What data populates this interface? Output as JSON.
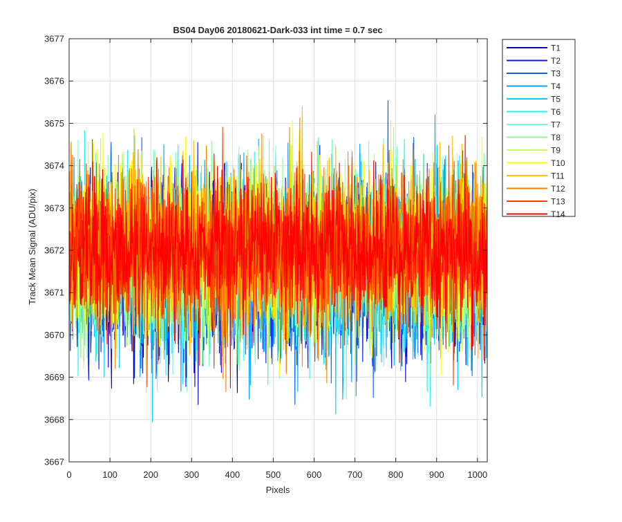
{
  "chart_data": {
    "type": "line",
    "title": "BS04 Day06 20180621-Dark-033 int time = 0.7 sec",
    "xlabel": "Pixels",
    "ylabel": "Track Mean Signal (ADU/pix)",
    "xlim": [
      0,
      1024
    ],
    "ylim": [
      3667,
      3677
    ],
    "x_ticks": [
      "0",
      "100",
      "200",
      "300",
      "400",
      "500",
      "600",
      "700",
      "800",
      "900",
      "1000"
    ],
    "y_ticks": [
      "3667",
      "3668",
      "3669",
      "3670",
      "3671",
      "3672",
      "3673",
      "3674",
      "3675",
      "3676",
      "3677"
    ],
    "grid": true,
    "legend_position": "outside-top-right",
    "n_points": 1024,
    "series": [
      {
        "name": "T1",
        "color": "#0000bf",
        "mean": 3671.5,
        "std": 1.0
      },
      {
        "name": "T2",
        "color": "#0017ff",
        "mean": 3671.5,
        "std": 1.0
      },
      {
        "name": "T3",
        "color": "#0060ff",
        "mean": 3671.6,
        "std": 1.0
      },
      {
        "name": "T4",
        "color": "#00a4ff",
        "mean": 3671.6,
        "std": 1.0
      },
      {
        "name": "T5",
        "color": "#00ccff",
        "mean": 3671.7,
        "std": 1.0
      },
      {
        "name": "T6",
        "color": "#1cf4ff",
        "mean": 3671.8,
        "std": 1.0
      },
      {
        "name": "T7",
        "color": "#6fffd1",
        "mean": 3671.8,
        "std": 1.0
      },
      {
        "name": "T8",
        "color": "#8fff8f",
        "mean": 3671.9,
        "std": 1.0
      },
      {
        "name": "T9",
        "color": "#c8ff5a",
        "mean": 3671.9,
        "std": 1.0
      },
      {
        "name": "T10",
        "color": "#ffff00",
        "mean": 3672.0,
        "std": 1.0
      },
      {
        "name": "T11",
        "color": "#ffbf00",
        "mean": 3672.0,
        "std": 0.95
      },
      {
        "name": "T12",
        "color": "#ff8000",
        "mean": 3672.0,
        "std": 0.95
      },
      {
        "name": "T13",
        "color": "#ff4000",
        "mean": 3672.0,
        "std": 0.9
      },
      {
        "name": "T14",
        "color": "#ff0000",
        "mean": 3672.0,
        "std": 0.85
      }
    ]
  }
}
